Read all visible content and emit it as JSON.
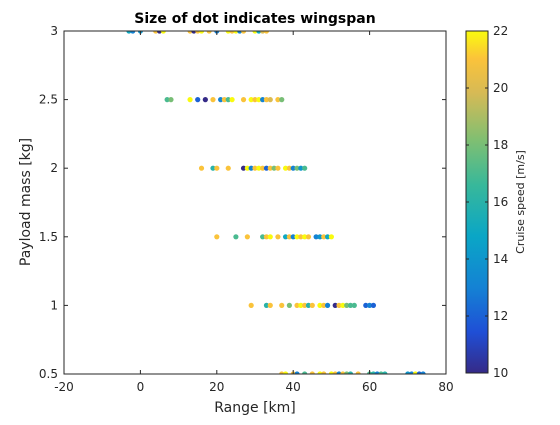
{
  "chart_data": {
    "type": "scatter",
    "title": "Size of dot indicates wingspan",
    "xlabel": "Range [km]",
    "ylabel": "Payload mass [kg]",
    "xlim": [
      -20,
      80
    ],
    "ylim": [
      0.5,
      3
    ],
    "x_ticks": [
      -20,
      0,
      20,
      40,
      60,
      80
    ],
    "y_ticks": [
      0.5,
      1,
      1.5,
      2,
      2.5,
      3
    ],
    "x_tick_labels": [
      "-20",
      "0",
      "20",
      "40",
      "60",
      "80"
    ],
    "y_tick_labels": [
      "0.5",
      "1",
      "1.5",
      "2",
      "2.5",
      "3"
    ],
    "grid": false,
    "colorbar": {
      "label": "Cruise speed [m/s]",
      "range": [
        10,
        22
      ],
      "ticks": [
        10,
        12,
        14,
        16,
        18,
        20,
        22
      ],
      "tick_labels": [
        "10",
        "12",
        "14",
        "16",
        "18",
        "20",
        "22"
      ],
      "colormap": "parula"
    },
    "points": [
      {
        "x": -3,
        "y": 3,
        "c": 15
      },
      {
        "x": -2,
        "y": 3,
        "c": 13
      },
      {
        "x": 0,
        "y": 3,
        "c": 14
      },
      {
        "x": 4,
        "y": 3,
        "c": 21
      },
      {
        "x": 5,
        "y": 3,
        "c": 10
      },
      {
        "x": 6,
        "y": 3,
        "c": 22
      },
      {
        "x": 13,
        "y": 3,
        "c": 21
      },
      {
        "x": 14,
        "y": 3,
        "c": 10
      },
      {
        "x": 15,
        "y": 3,
        "c": 21
      },
      {
        "x": 16,
        "y": 3,
        "c": 22
      },
      {
        "x": 18,
        "y": 3,
        "c": 21
      },
      {
        "x": 20,
        "y": 3,
        "c": 13
      },
      {
        "x": 23,
        "y": 3,
        "c": 22
      },
      {
        "x": 24,
        "y": 3,
        "c": 21
      },
      {
        "x": 25,
        "y": 3,
        "c": 22
      },
      {
        "x": 26,
        "y": 3,
        "c": 13
      },
      {
        "x": 27,
        "y": 3,
        "c": 21
      },
      {
        "x": 30,
        "y": 3,
        "c": 22
      },
      {
        "x": 31,
        "y": 3,
        "c": 15
      },
      {
        "x": 32,
        "y": 3,
        "c": 20
      },
      {
        "x": 33,
        "y": 3,
        "c": 21
      },
      {
        "x": 7,
        "y": 2.5,
        "c": 17
      },
      {
        "x": 8,
        "y": 2.5,
        "c": 18
      },
      {
        "x": 13,
        "y": 2.5,
        "c": 22
      },
      {
        "x": 15,
        "y": 2.5,
        "c": 12
      },
      {
        "x": 17,
        "y": 2.5,
        "c": 10
      },
      {
        "x": 19,
        "y": 2.5,
        "c": 21
      },
      {
        "x": 21,
        "y": 2.5,
        "c": 13
      },
      {
        "x": 22,
        "y": 2.5,
        "c": 21
      },
      {
        "x": 23,
        "y": 2.5,
        "c": 17
      },
      {
        "x": 24,
        "y": 2.5,
        "c": 22
      },
      {
        "x": 27,
        "y": 2.5,
        "c": 21
      },
      {
        "x": 29,
        "y": 2.5,
        "c": 22
      },
      {
        "x": 30,
        "y": 2.5,
        "c": 21
      },
      {
        "x": 31,
        "y": 2.5,
        "c": 22
      },
      {
        "x": 32,
        "y": 2.5,
        "c": 13
      },
      {
        "x": 33,
        "y": 2.5,
        "c": 21
      },
      {
        "x": 34,
        "y": 2.5,
        "c": 20
      },
      {
        "x": 36,
        "y": 2.5,
        "c": 21
      },
      {
        "x": 37,
        "y": 2.5,
        "c": 18
      },
      {
        "x": 16,
        "y": 2,
        "c": 21
      },
      {
        "x": 19,
        "y": 2,
        "c": 16
      },
      {
        "x": 20,
        "y": 2,
        "c": 21
      },
      {
        "x": 23,
        "y": 2,
        "c": 21
      },
      {
        "x": 27,
        "y": 2,
        "c": 10
      },
      {
        "x": 28,
        "y": 2,
        "c": 22
      },
      {
        "x": 29,
        "y": 2,
        "c": 13
      },
      {
        "x": 30,
        "y": 2,
        "c": 21
      },
      {
        "x": 31,
        "y": 2,
        "c": 22
      },
      {
        "x": 32,
        "y": 2,
        "c": 21
      },
      {
        "x": 33,
        "y": 2,
        "c": 12
      },
      {
        "x": 34,
        "y": 2,
        "c": 21
      },
      {
        "x": 35,
        "y": 2,
        "c": 18
      },
      {
        "x": 36,
        "y": 2,
        "c": 21
      },
      {
        "x": 38,
        "y": 2,
        "c": 22
      },
      {
        "x": 39,
        "y": 2,
        "c": 21
      },
      {
        "x": 40,
        "y": 2,
        "c": 13
      },
      {
        "x": 41,
        "y": 2,
        "c": 18
      },
      {
        "x": 42,
        "y": 2,
        "c": 14
      },
      {
        "x": 43,
        "y": 2,
        "c": 17
      },
      {
        "x": 20,
        "y": 1.5,
        "c": 21
      },
      {
        "x": 25,
        "y": 1.5,
        "c": 17
      },
      {
        "x": 28,
        "y": 1.5,
        "c": 21
      },
      {
        "x": 32,
        "y": 1.5,
        "c": 17
      },
      {
        "x": 33,
        "y": 1.5,
        "c": 21
      },
      {
        "x": 34,
        "y": 1.5,
        "c": 22
      },
      {
        "x": 36,
        "y": 1.5,
        "c": 21
      },
      {
        "x": 38,
        "y": 1.5,
        "c": 15
      },
      {
        "x": 39,
        "y": 1.5,
        "c": 21
      },
      {
        "x": 40,
        "y": 1.5,
        "c": 13
      },
      {
        "x": 41,
        "y": 1.5,
        "c": 22
      },
      {
        "x": 42,
        "y": 1.5,
        "c": 21
      },
      {
        "x": 43,
        "y": 1.5,
        "c": 22
      },
      {
        "x": 44,
        "y": 1.5,
        "c": 21
      },
      {
        "x": 46,
        "y": 1.5,
        "c": 13
      },
      {
        "x": 47,
        "y": 1.5,
        "c": 14
      },
      {
        "x": 48,
        "y": 1.5,
        "c": 21
      },
      {
        "x": 49,
        "y": 1.5,
        "c": 15
      },
      {
        "x": 50,
        "y": 1.5,
        "c": 22
      },
      {
        "x": 29,
        "y": 1,
        "c": 21
      },
      {
        "x": 33,
        "y": 1,
        "c": 16
      },
      {
        "x": 34,
        "y": 1,
        "c": 21
      },
      {
        "x": 37,
        "y": 1,
        "c": 21
      },
      {
        "x": 39,
        "y": 1,
        "c": 18
      },
      {
        "x": 41,
        "y": 1,
        "c": 21
      },
      {
        "x": 42,
        "y": 1,
        "c": 22
      },
      {
        "x": 43,
        "y": 1,
        "c": 21
      },
      {
        "x": 44,
        "y": 1,
        "c": 16
      },
      {
        "x": 45,
        "y": 1,
        "c": 21
      },
      {
        "x": 47,
        "y": 1,
        "c": 22
      },
      {
        "x": 48,
        "y": 1,
        "c": 21
      },
      {
        "x": 49,
        "y": 1,
        "c": 13
      },
      {
        "x": 51,
        "y": 1,
        "c": 10
      },
      {
        "x": 52,
        "y": 1,
        "c": 21
      },
      {
        "x": 53,
        "y": 1,
        "c": 22
      },
      {
        "x": 54,
        "y": 1,
        "c": 18
      },
      {
        "x": 55,
        "y": 1,
        "c": 17
      },
      {
        "x": 56,
        "y": 1,
        "c": 17
      },
      {
        "x": 59,
        "y": 1,
        "c": 12
      },
      {
        "x": 60,
        "y": 1,
        "c": 13
      },
      {
        "x": 61,
        "y": 1,
        "c": 12
      },
      {
        "x": 37,
        "y": 0.5,
        "c": 21
      },
      {
        "x": 38,
        "y": 0.5,
        "c": 22
      },
      {
        "x": 40,
        "y": 0.5,
        "c": 21
      },
      {
        "x": 41,
        "y": 0.5,
        "c": 13
      },
      {
        "x": 43,
        "y": 0.5,
        "c": 17
      },
      {
        "x": 45,
        "y": 0.5,
        "c": 21
      },
      {
        "x": 47,
        "y": 0.5,
        "c": 22
      },
      {
        "x": 48,
        "y": 0.5,
        "c": 21
      },
      {
        "x": 50,
        "y": 0.5,
        "c": 22
      },
      {
        "x": 51,
        "y": 0.5,
        "c": 21
      },
      {
        "x": 52,
        "y": 0.5,
        "c": 13
      },
      {
        "x": 53,
        "y": 0.5,
        "c": 21
      },
      {
        "x": 54,
        "y": 0.5,
        "c": 18
      },
      {
        "x": 55,
        "y": 0.5,
        "c": 16
      },
      {
        "x": 57,
        "y": 0.5,
        "c": 21
      },
      {
        "x": 60,
        "y": 0.5,
        "c": 17
      },
      {
        "x": 61,
        "y": 0.5,
        "c": 16
      },
      {
        "x": 62,
        "y": 0.5,
        "c": 13
      },
      {
        "x": 63,
        "y": 0.5,
        "c": 17
      },
      {
        "x": 64,
        "y": 0.5,
        "c": 16
      },
      {
        "x": 70,
        "y": 0.5,
        "c": 14
      },
      {
        "x": 71,
        "y": 0.5,
        "c": 13
      },
      {
        "x": 72,
        "y": 0.5,
        "c": 22
      },
      {
        "x": 73,
        "y": 0.5,
        "c": 12
      },
      {
        "x": 74,
        "y": 0.5,
        "c": 13
      }
    ]
  }
}
